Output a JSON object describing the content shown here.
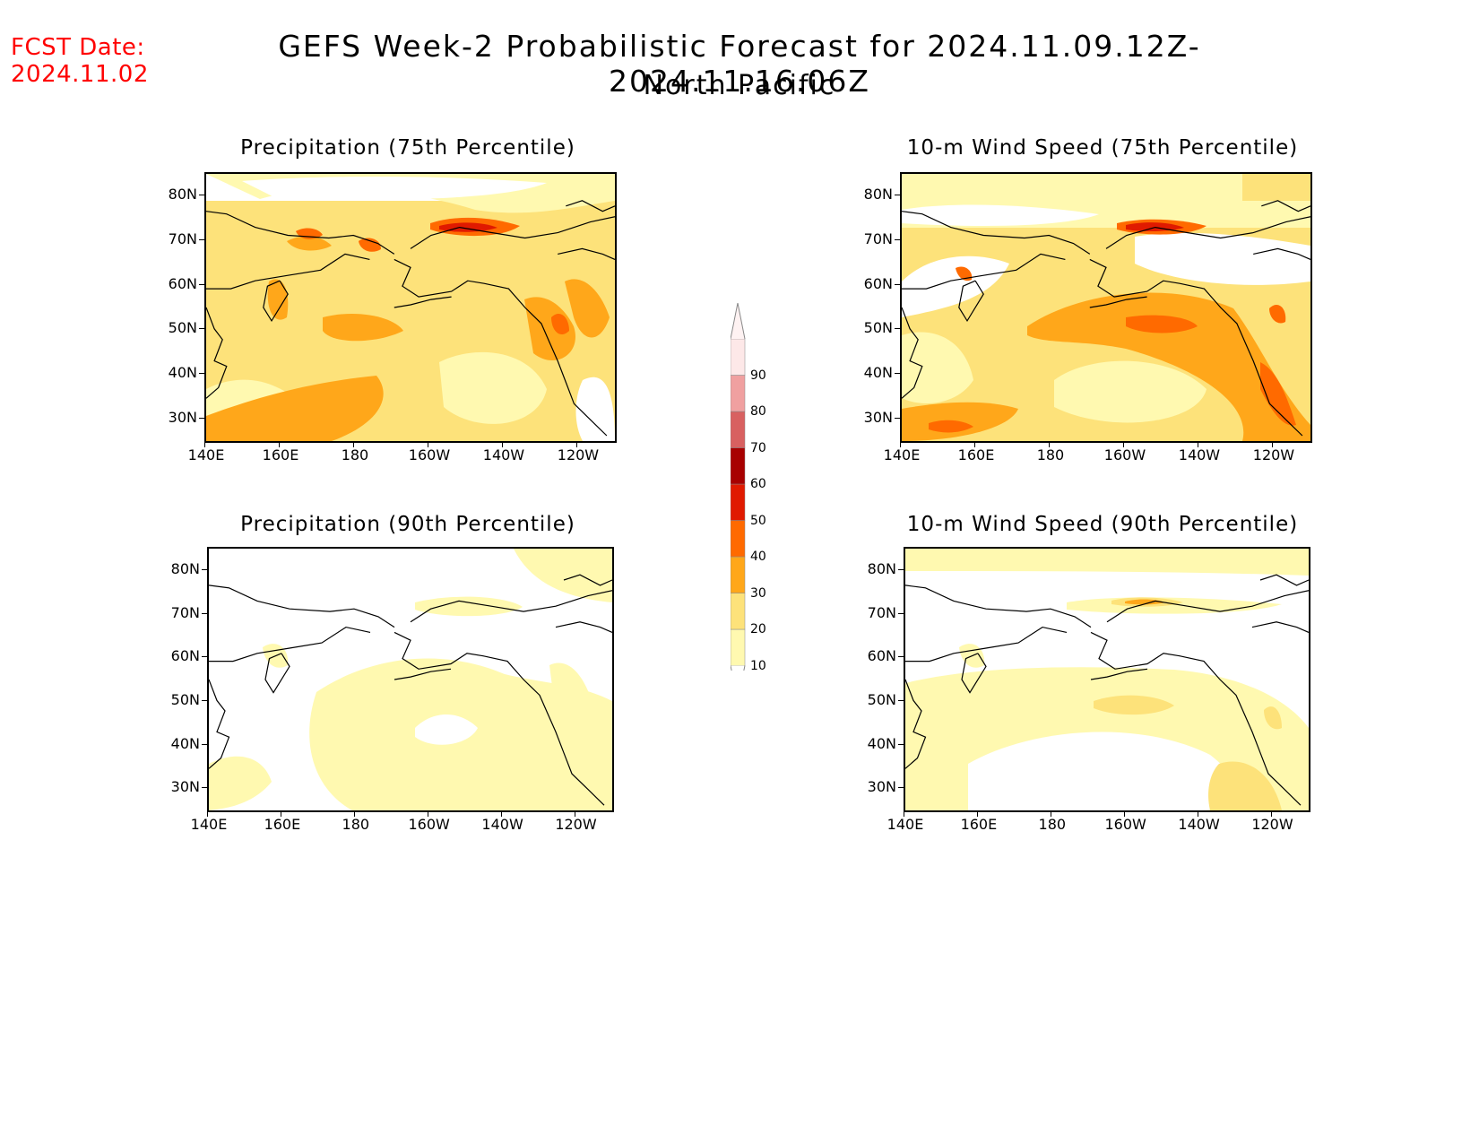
{
  "fcst_date": {
    "label": "FCST Date:",
    "value": "2024.11.02"
  },
  "title": "GEFS Week-2 Probabilistic Forecast for 2024.11.09.12Z-2024.11.16.06Z",
  "subtitle": "North Pacific",
  "panels": [
    {
      "title": "Precipitation (75th Percentile)"
    },
    {
      "title": "10-m Wind Speed (75th Percentile)"
    },
    {
      "title": "Precipitation (90th Percentile)"
    },
    {
      "title": "10-m Wind Speed (90th Percentile)"
    }
  ],
  "lat_labels": [
    "80N",
    "70N",
    "60N",
    "50N",
    "40N",
    "30N"
  ],
  "lon_labels": [
    "140E",
    "160E",
    "180",
    "160W",
    "140W",
    "120W"
  ],
  "colorbar": {
    "levels": [
      "10",
      "20",
      "30",
      "40",
      "50",
      "60",
      "70",
      "80",
      "90"
    ],
    "colors": [
      "#fff9b0",
      "#fde27a",
      "#ffa71a",
      "#ff6a00",
      "#e01a00",
      "#a80000",
      "#d86060",
      "#f0a0a0",
      "#fde8e8"
    ]
  }
}
